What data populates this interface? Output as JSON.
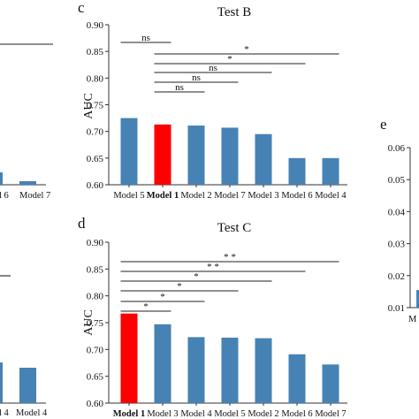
{
  "chart_data": [
    {
      "id": "c",
      "type": "bar",
      "panel_letter": "c",
      "title": "Test B",
      "ylabel": "AUC",
      "ylim": [
        0.6,
        0.9
      ],
      "yticks": [
        "0.60",
        "0.65",
        "0.70",
        "0.75",
        "0.80",
        "0.85",
        "0.90"
      ],
      "categories": [
        "Model 5",
        "Model 1",
        "Model 2",
        "Model 7",
        "Model 3",
        "Model 6",
        "Model 4"
      ],
      "bold_category": "Model 1",
      "values": [
        0.725,
        0.713,
        0.711,
        0.707,
        0.695,
        0.65,
        0.65
      ],
      "colors": [
        "#4682B4",
        "#FF0000",
        "#4682B4",
        "#4682B4",
        "#4682B4",
        "#4682B4",
        "#4682B4"
      ],
      "comparisons": [
        {
          "from": "Model 5",
          "to": "Model 1",
          "label": "ns"
        },
        {
          "from": "Model 1",
          "to": "Model 4",
          "label": "*"
        },
        {
          "from": "Model 1",
          "to": "Model 6",
          "label": "*"
        },
        {
          "from": "Model 1",
          "to": "Model 3",
          "label": "ns"
        },
        {
          "from": "Model 1",
          "to": "Model 7",
          "label": "ns"
        },
        {
          "from": "Model 1",
          "to": "Model 2",
          "label": "ns"
        }
      ]
    },
    {
      "id": "d",
      "type": "bar",
      "panel_letter": "d",
      "title": "Test C",
      "ylabel": "AUC",
      "ylim": [
        0.6,
        0.9
      ],
      "yticks": [
        "0.60",
        "0.65",
        "0.70",
        "0.75",
        "0.80",
        "0.85",
        "0.90"
      ],
      "categories": [
        "Model 1",
        "Model 3",
        "Model 4",
        "Model 5",
        "Model 2",
        "Model 6",
        "Model 7"
      ],
      "bold_category": "Model 1",
      "values": [
        0.767,
        0.747,
        0.723,
        0.722,
        0.721,
        0.691,
        0.672
      ],
      "colors": [
        "#FF0000",
        "#4682B4",
        "#4682B4",
        "#4682B4",
        "#4682B4",
        "#4682B4",
        "#4682B4"
      ],
      "comparisons": [
        {
          "from": "Model 1",
          "to": "Model 7",
          "label": "* *"
        },
        {
          "from": "Model 1",
          "to": "Model 6",
          "label": "* *"
        },
        {
          "from": "Model 1",
          "to": "Model 2",
          "label": "*"
        },
        {
          "from": "Model 1",
          "to": "Model 5",
          "label": "*"
        },
        {
          "from": "Model 1",
          "to": "Model 4",
          "label": "*"
        },
        {
          "from": "Model 1",
          "to": "Model 3",
          "label": "*"
        }
      ]
    },
    {
      "id": "e",
      "type": "bar",
      "panel_letter": "e",
      "partial": true,
      "yticks": [
        "0.01",
        "0.02",
        "0.03",
        "0.04",
        "0.05",
        "0.06"
      ],
      "ylim": [
        0.01,
        0.06
      ],
      "categories": [
        "M"
      ],
      "values": [
        0.0155
      ],
      "colors": [
        "#4682B4"
      ]
    },
    {
      "id": "left",
      "type": "bar",
      "partial": true,
      "top_categories": [
        "l 6",
        "Model 7"
      ],
      "top_values_shown": [
        0.623,
        0.606
      ],
      "bottom_categories": [
        "l 4",
        "Model 4"
      ],
      "bottom_values_shown": [
        0.678,
        0.67
      ],
      "colors": [
        "#4682B4",
        "#4682B4"
      ]
    }
  ]
}
